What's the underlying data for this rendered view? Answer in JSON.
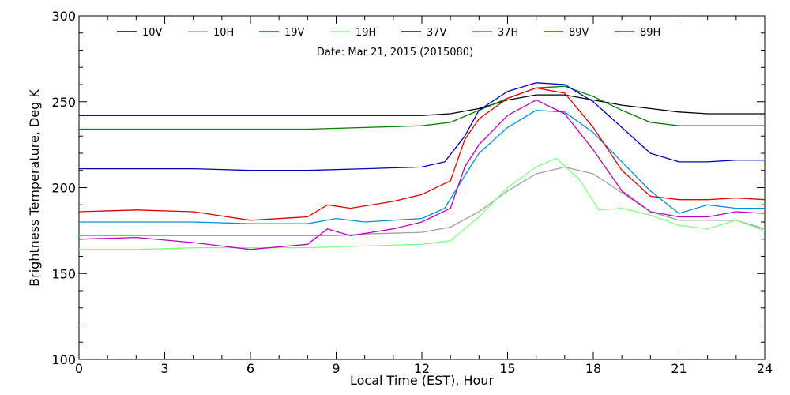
{
  "chart_data": {
    "type": "line",
    "subtitle": "Date: Mar 21, 2015 (2015080)",
    "xlabel": "Local Time (EST), Hour",
    "ylabel": "Brightness Temperature, Deg K",
    "xlim": [
      0,
      24
    ],
    "ylim": [
      100,
      300
    ],
    "xticks": [
      0,
      3,
      6,
      9,
      12,
      15,
      18,
      21,
      24
    ],
    "yticks": [
      100,
      150,
      200,
      250,
      300
    ],
    "grid": false,
    "legend_position": "top",
    "series": [
      {
        "name": "10V",
        "color": "#000000",
        "x": [
          0,
          2,
          4,
          6,
          8,
          10,
          12,
          13,
          14,
          15,
          16,
          17,
          18,
          19,
          20,
          21,
          22,
          23,
          24
        ],
        "y": [
          242,
          242,
          242,
          242,
          242,
          242,
          242,
          243,
          246,
          251,
          254,
          254,
          251,
          248,
          246,
          244,
          243,
          243,
          243
        ]
      },
      {
        "name": "10H",
        "color": "#a0a0a0",
        "x": [
          0,
          2,
          4,
          6,
          8,
          9,
          10,
          12,
          13,
          14,
          15,
          16,
          17,
          18,
          19,
          20,
          21,
          22,
          23,
          24
        ],
        "y": [
          172,
          172,
          172,
          172,
          172,
          172,
          173,
          174,
          177,
          186,
          198,
          208,
          212,
          208,
          197,
          186,
          181,
          181,
          181,
          176
        ]
      },
      {
        "name": "19V",
        "color": "#008000",
        "x": [
          0,
          2,
          4,
          6,
          8,
          10,
          12,
          13,
          14,
          15,
          16,
          17,
          18,
          19,
          20,
          21,
          22,
          23,
          24
        ],
        "y": [
          234,
          234,
          234,
          234,
          234,
          235,
          236,
          238,
          245,
          252,
          258,
          259,
          253,
          245,
          238,
          236,
          236,
          236,
          236
        ]
      },
      {
        "name": "19H",
        "color": "#80ff80",
        "x": [
          0,
          2,
          4,
          6,
          8,
          10,
          12,
          13,
          14,
          15,
          16,
          16.7,
          17.5,
          18.2,
          19,
          20,
          21,
          22,
          23,
          24
        ],
        "y": [
          164,
          164,
          165,
          165,
          165,
          166,
          167,
          169,
          183,
          200,
          212,
          217,
          205,
          187,
          188,
          184,
          178,
          176,
          181,
          175
        ]
      },
      {
        "name": "37V",
        "color": "#0000c0",
        "x": [
          0,
          2,
          4,
          6,
          8,
          10,
          12,
          12.8,
          13.5,
          14,
          15,
          16,
          17,
          18,
          19,
          20,
          21,
          22,
          23,
          24
        ],
        "y": [
          211,
          211,
          211,
          210,
          210,
          211,
          212,
          215,
          230,
          245,
          256,
          261,
          260,
          250,
          235,
          220,
          215,
          215,
          216,
          216
        ]
      },
      {
        "name": "37H",
        "color": "#0090e0",
        "x": [
          0,
          2,
          4,
          6,
          8,
          9,
          10,
          12,
          12.8,
          13.5,
          14,
          15,
          16,
          17,
          18,
          19,
          20,
          21,
          22,
          23,
          24
        ],
        "y": [
          180,
          180,
          180,
          179,
          179,
          182,
          180,
          182,
          188,
          207,
          220,
          235,
          245,
          244,
          232,
          215,
          198,
          185,
          190,
          188,
          188
        ]
      },
      {
        "name": "89V",
        "color": "#e00000",
        "x": [
          0,
          2,
          4,
          6,
          8,
          8.7,
          9.5,
          11,
          12,
          13,
          13.5,
          14,
          15,
          16,
          17,
          18,
          19,
          20,
          21,
          22,
          23,
          24
        ],
        "y": [
          186,
          187,
          186,
          181,
          183,
          190,
          188,
          192,
          196,
          204,
          228,
          240,
          252,
          258,
          255,
          235,
          210,
          195,
          193,
          193,
          194,
          193
        ]
      },
      {
        "name": "89H",
        "color": "#c000c0",
        "x": [
          0,
          2,
          4,
          6,
          8,
          8.7,
          9.5,
          11,
          12,
          13,
          13.5,
          14,
          15,
          16,
          17,
          18,
          19,
          20,
          21,
          22,
          23,
          24
        ],
        "y": [
          170,
          171,
          168,
          164,
          167,
          176,
          172,
          176,
          180,
          188,
          212,
          225,
          242,
          251,
          243,
          222,
          198,
          186,
          183,
          183,
          186,
          185
        ]
      }
    ]
  }
}
